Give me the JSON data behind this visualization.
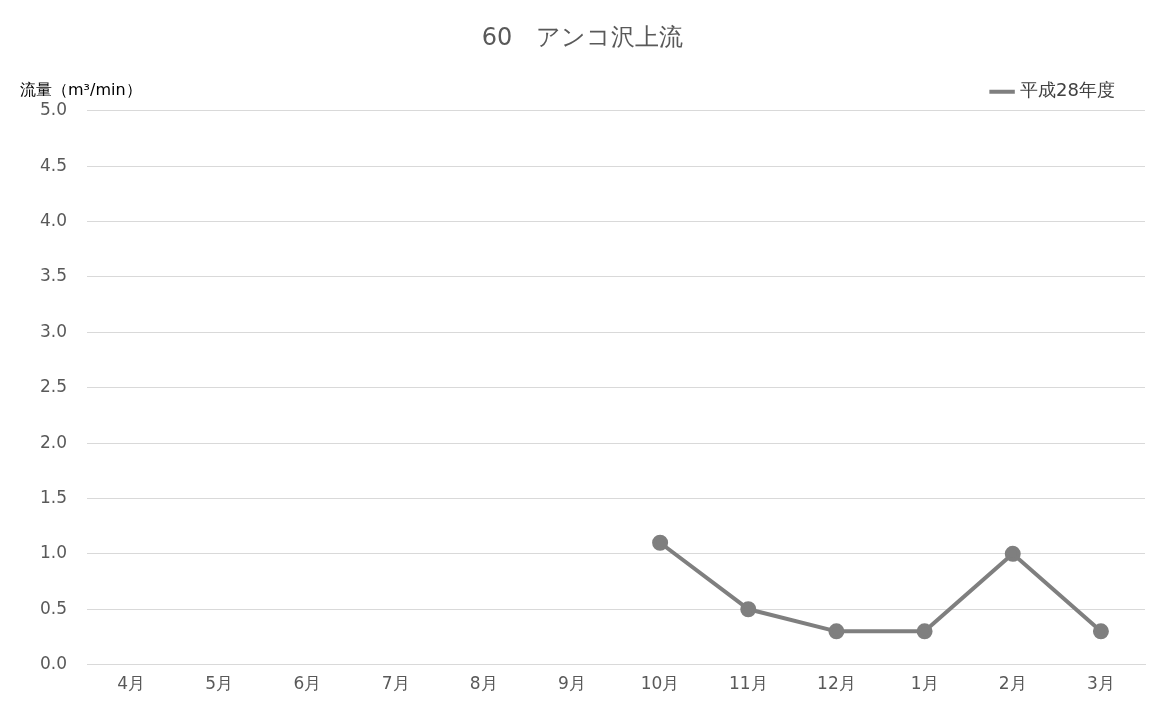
{
  "chart_data": {
    "type": "line",
    "title": "60　アンコ沢上流",
    "ylabel": "流量（m³/min）",
    "categories": [
      "4月",
      "5月",
      "6月",
      "7月",
      "8月",
      "9月",
      "10月",
      "11月",
      "12月",
      "1月",
      "2月",
      "3月"
    ],
    "series": [
      {
        "name": "平成28年度",
        "color": "#7f7f7f",
        "values": [
          null,
          null,
          null,
          null,
          null,
          null,
          1.1,
          0.5,
          0.3,
          0.3,
          1.0,
          0.3
        ]
      }
    ],
    "ylim": [
      0,
      5
    ],
    "yticks": [
      {
        "value": 0,
        "label": "0.0"
      },
      {
        "value": 0.5,
        "label": "0.5"
      },
      {
        "value": 1,
        "label": "1.0"
      },
      {
        "value": 1.5,
        "label": "1.5"
      },
      {
        "value": 2,
        "label": "2.0"
      },
      {
        "value": 2.5,
        "label": "2.5"
      },
      {
        "value": 3,
        "label": "3.0"
      },
      {
        "value": 3.5,
        "label": "3.5"
      },
      {
        "value": 4,
        "label": "4.0"
      },
      {
        "value": 4.5,
        "label": "4.5"
      },
      {
        "value": 5,
        "label": "5.0"
      }
    ],
    "grid": "y",
    "legend": "top right",
    "marker": "circle",
    "line_style": "solid"
  }
}
